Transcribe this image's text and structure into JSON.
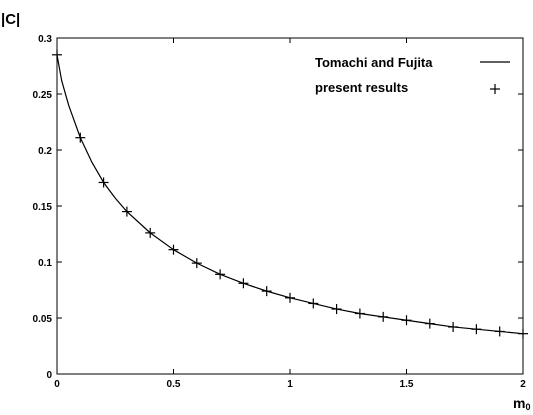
{
  "chart_data": {
    "type": "line",
    "title": "",
    "ylabel": "|C|",
    "xlabel_main": "m",
    "xlabel_sub": "0",
    "xlim": [
      0,
      2
    ],
    "ylim": [
      0,
      0.3
    ],
    "x_ticks": [
      {
        "value": 0,
        "label": "0"
      },
      {
        "value": 0.5,
        "label": "0.5"
      },
      {
        "value": 1,
        "label": "1"
      },
      {
        "value": 1.5,
        "label": "1.5"
      },
      {
        "value": 2,
        "label": "2"
      }
    ],
    "y_ticks": [
      {
        "value": 0,
        "label": "0"
      },
      {
        "value": 0.05,
        "label": "0.05"
      },
      {
        "value": 0.1,
        "label": "0.1"
      },
      {
        "value": 0.15,
        "label": "0.15"
      },
      {
        "value": 0.2,
        "label": "0.2"
      },
      {
        "value": 0.25,
        "label": "0.25"
      },
      {
        "value": 0.3,
        "label": "0.3"
      }
    ],
    "grid": false,
    "legend_position": "top-right",
    "series": [
      {
        "name": "Tomachi and Fujita",
        "style": "line",
        "x": [
          0,
          0.02,
          0.05,
          0.1,
          0.15,
          0.2,
          0.25,
          0.3,
          0.4,
          0.5,
          0.6,
          0.7,
          0.8,
          0.9,
          1.0,
          1.1,
          1.2,
          1.3,
          1.4,
          1.5,
          1.6,
          1.7,
          1.8,
          1.9,
          2.0
        ],
        "y": [
          0.285,
          0.262,
          0.24,
          0.211,
          0.189,
          0.171,
          0.157,
          0.145,
          0.126,
          0.111,
          0.099,
          0.089,
          0.081,
          0.074,
          0.068,
          0.063,
          0.058,
          0.054,
          0.051,
          0.048,
          0.045,
          0.042,
          0.04,
          0.038,
          0.036
        ]
      },
      {
        "name": "present results",
        "style": "marker-plus",
        "x": [
          0,
          0.1,
          0.2,
          0.3,
          0.4,
          0.5,
          0.6,
          0.7,
          0.8,
          0.9,
          1.0,
          1.1,
          1.2,
          1.3,
          1.4,
          1.5,
          1.6,
          1.7,
          1.8,
          1.9,
          2.0
        ],
        "y": [
          0.285,
          0.211,
          0.171,
          0.145,
          0.126,
          0.111,
          0.099,
          0.089,
          0.081,
          0.074,
          0.068,
          0.063,
          0.058,
          0.054,
          0.051,
          0.048,
          0.045,
          0.042,
          0.04,
          0.038,
          0.036
        ]
      }
    ]
  }
}
